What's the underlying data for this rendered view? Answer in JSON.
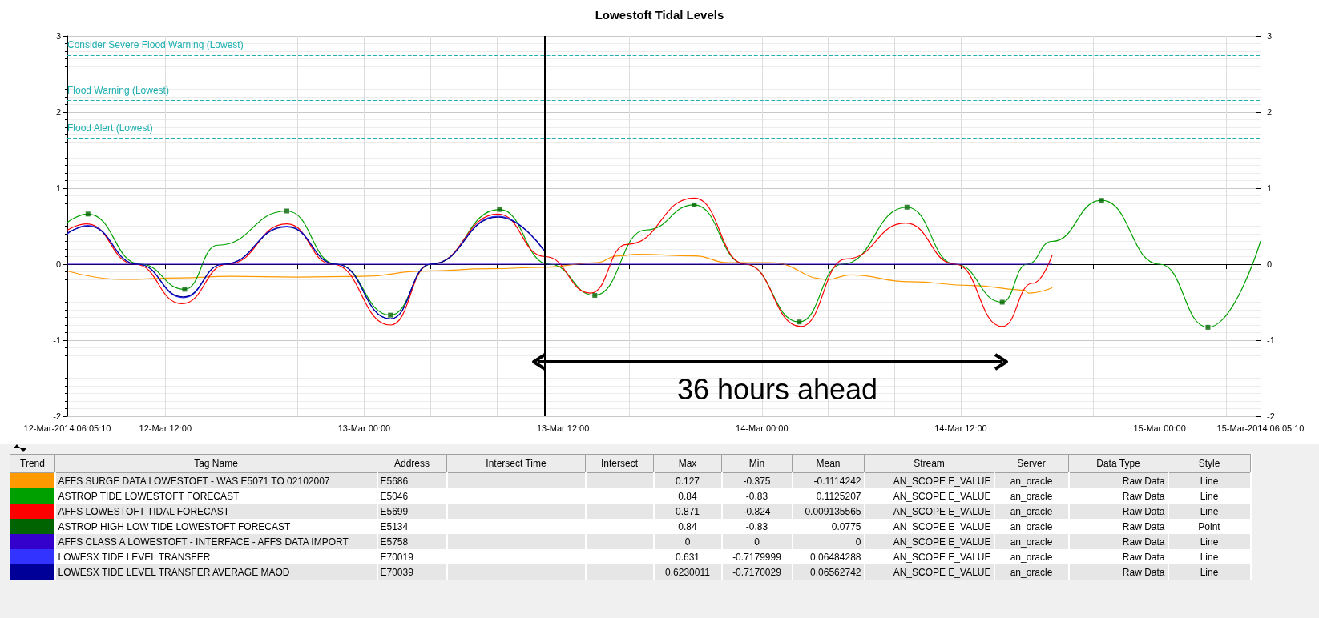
{
  "chart_data": [
    {
      "type": "line",
      "title": "Lowestoft Tidal Levels",
      "marker": "none",
      "line_style": "solid",
      "grid": true,
      "xlim": [
        "2014-03-12T06:05:10",
        "2014-03-15T06:05:10"
      ],
      "xticks": [
        {
          "value": "2014-03-12T06:05:10",
          "label": "12-Mar-2014 06:05:10"
        },
        {
          "value": "2014-03-12T08:00",
          "label": null
        },
        {
          "value": "2014-03-12T12:00",
          "label": "12-Mar 12:00"
        },
        {
          "value": "2014-03-12T16:00",
          "label": null
        },
        {
          "value": "2014-03-12T20:00",
          "label": null
        },
        {
          "value": "2014-03-13T00:00",
          "label": "13-Mar 00:00"
        },
        {
          "value": "2014-03-13T04:00",
          "label": null
        },
        {
          "value": "2014-03-13T08:00",
          "label": null
        },
        {
          "value": "2014-03-13T12:00",
          "label": "13-Mar 12:00"
        },
        {
          "value": "2014-03-13T16:00",
          "label": null
        },
        {
          "value": "2014-03-13T20:00",
          "label": null
        },
        {
          "value": "2014-03-14T00:00",
          "label": "14-Mar 00:00"
        },
        {
          "value": "2014-03-14T04:00",
          "label": null
        },
        {
          "value": "2014-03-14T08:00",
          "label": null
        },
        {
          "value": "2014-03-14T12:00",
          "label": "14-Mar 12:00"
        },
        {
          "value": "2014-03-14T16:00",
          "label": null
        },
        {
          "value": "2014-03-14T20:00",
          "label": null
        },
        {
          "value": "2014-03-15T00:00",
          "label": "15-Mar 00:00"
        },
        {
          "value": "2014-03-15T04:00",
          "label": null
        },
        {
          "value": "2014-03-15T06:05:10",
          "label": "15-Mar-2014 06:05:10"
        }
      ],
      "ylim": [
        -2,
        3
      ],
      "yticks": [
        -2,
        -1,
        0,
        1,
        2,
        3
      ],
      "y2lim": [
        -2,
        3
      ],
      "y2ticks": [
        -2,
        -1,
        0,
        1,
        2,
        3
      ],
      "ref_lines": [
        {
          "axis": "y",
          "value": 2.75,
          "label": "Consider Severe Flood Warning (Lowest)",
          "color": "#20b0b0",
          "line_style": "dashed"
        },
        {
          "axis": "y",
          "value": 2.15,
          "label": "Flood Warning (Lowest)",
          "color": "#20b0b0",
          "line_style": "dashed"
        },
        {
          "axis": "y",
          "value": 1.65,
          "label": "Flood Alert (Lowest)",
          "color": "#20b0b0",
          "line_style": "dashed"
        },
        {
          "axis": "x",
          "value": "2014-03-13T10:55",
          "color": "#000000",
          "line_style": "solid"
        }
      ],
      "annotations": [
        "36 hours ahead"
      ],
      "series": [
        {
          "color": "#ff9900",
          "x": [
            "2014-03-12T06:06",
            "2014-03-12T09:25",
            "2014-03-12T12:50",
            "2014-03-12T15:55",
            "2014-03-12T20:00",
            "2014-03-12T23:55",
            "2014-03-13T03:40",
            "2014-03-13T07:35",
            "2014-03-13T10:55",
            "2014-03-13T14:00",
            "2014-03-13T15:20",
            "2014-03-13T16:30",
            "2014-03-13T19:55",
            "2014-03-13T22:00",
            "2014-03-14T00:30",
            "2014-03-14T04:00",
            "2014-03-14T05:20",
            "2014-03-14T08:55",
            "2014-03-14T12:40",
            "2014-03-14T15:50",
            "2014-03-14T16:05",
            "2014-03-14T17:30"
          ],
          "values": [
            -0.09,
            -0.2,
            -0.18,
            -0.16,
            -0.17,
            -0.16,
            -0.09,
            -0.06,
            -0.04,
            0.02,
            0.11,
            0.13,
            0.11,
            0.02,
            0.02,
            -0.2,
            -0.14,
            -0.23,
            -0.28,
            -0.34,
            -0.38,
            -0.31
          ]
        },
        {
          "color": "#00a000",
          "x": [
            "2014-03-12T06:06",
            "2014-03-12T07:20",
            "2014-03-12T10:30",
            "2014-03-12T13:10",
            "2014-03-12T15:10",
            "2014-03-12T19:20",
            "2014-03-12T22:20",
            "2014-03-13T01:35",
            "2014-03-13T04:05",
            "2014-03-13T08:10",
            "2014-03-13T11:10",
            "2014-03-13T13:55",
            "2014-03-13T17:00",
            "2014-03-13T19:55",
            "2014-03-13T23:00",
            "2014-03-14T02:15",
            "2014-03-14T04:50",
            "2014-03-14T08:45",
            "2014-03-14T11:40",
            "2014-03-14T14:30",
            "2014-03-14T16:00",
            "2014-03-14T17:30",
            "2014-03-14T20:30",
            "2014-03-15T00:00",
            "2014-03-15T02:55",
            "2014-03-15T06:05"
          ],
          "values": [
            0.55,
            0.66,
            0.0,
            -0.33,
            0.25,
            0.7,
            0.0,
            -0.67,
            0.0,
            0.72,
            0.0,
            -0.41,
            0.45,
            0.78,
            0.0,
            -0.76,
            0.0,
            0.75,
            0.0,
            -0.5,
            0.0,
            0.3,
            0.84,
            0.0,
            -0.83,
            0.3
          ]
        },
        {
          "color": "#ff0000",
          "x": [
            "2014-03-12T06:06",
            "2014-03-12T07:15",
            "2014-03-12T10:10",
            "2014-03-12T13:00",
            "2014-03-12T15:45",
            "2014-03-12T19:20",
            "2014-03-12T22:05",
            "2014-03-13T01:35",
            "2014-03-13T04:00",
            "2014-03-13T08:05",
            "2014-03-13T10:55",
            "2014-03-13T13:40",
            "2014-03-13T15:50",
            "2014-03-13T19:55",
            "2014-03-13T23:00",
            "2014-03-14T02:20",
            "2014-03-14T05:05",
            "2014-03-14T08:40",
            "2014-03-14T11:40",
            "2014-03-14T14:30",
            "2014-03-14T16:20",
            "2014-03-14T17:30"
          ],
          "values": [
            0.45,
            0.53,
            0.0,
            -0.52,
            0.0,
            0.53,
            0.0,
            -0.8,
            0.0,
            0.66,
            0.1,
            -0.38,
            0.26,
            0.87,
            0.0,
            -0.82,
            0.07,
            0.54,
            0.0,
            -0.82,
            -0.25,
            0.11
          ]
        },
        {
          "type": "scatter",
          "marker": "square",
          "color": "#006400",
          "x": [
            "2014-03-12T07:20",
            "2014-03-12T13:10",
            "2014-03-12T19:20",
            "2014-03-13T01:35",
            "2014-03-13T08:10",
            "2014-03-13T13:55",
            "2014-03-13T19:55",
            "2014-03-14T02:15",
            "2014-03-14T08:45",
            "2014-03-14T14:30",
            "2014-03-14T20:30",
            "2014-03-15T02:55"
          ],
          "values": [
            0.66,
            -0.33,
            0.7,
            -0.67,
            0.72,
            -0.41,
            0.78,
            -0.76,
            0.75,
            -0.5,
            0.84,
            -0.83
          ]
        },
        {
          "color": "#3300cc",
          "x": [
            "2014-03-12T06:06",
            "2014-03-14T17:30"
          ],
          "values": [
            0,
            0
          ]
        },
        {
          "color": "#3333ff",
          "x": [
            "2014-03-12T06:06",
            "2014-03-12T07:20",
            "2014-03-12T10:20",
            "2014-03-12T13:05",
            "2014-03-12T15:30",
            "2014-03-12T19:20",
            "2014-03-12T22:20",
            "2014-03-13T01:35",
            "2014-03-13T04:00",
            "2014-03-13T08:05",
            "2014-03-13T10:50"
          ],
          "values": [
            0.4,
            0.51,
            0.0,
            -0.44,
            0.0,
            0.5,
            0.0,
            -0.72,
            0.0,
            0.63,
            0.18
          ]
        },
        {
          "color": "#000099",
          "x": [
            "2014-03-12T06:06",
            "2014-03-12T07:20",
            "2014-03-12T10:20",
            "2014-03-12T13:05",
            "2014-03-12T15:30",
            "2014-03-12T19:20",
            "2014-03-12T22:20",
            "2014-03-13T01:35",
            "2014-03-13T04:00",
            "2014-03-13T08:05",
            "2014-03-13T10:50"
          ],
          "values": [
            0.41,
            0.5,
            0.0,
            -0.43,
            0.0,
            0.49,
            0.0,
            -0.72,
            0.0,
            0.62,
            0.19
          ]
        }
      ]
    },
    {
      "type": "other",
      "categories": [
        "Trend",
        "Tag Name",
        "Address",
        "Intersect Time",
        "Intersect",
        "Max",
        "Min",
        "Mean",
        "Stream",
        "Server",
        "Data Type",
        "Style"
      ],
      "cell_labels": [
        [
          null,
          "AFFS SURGE DATA LOWESTOFT - WAS E5071 TO 02102007",
          "E5686",
          null,
          null,
          "0.127",
          "-0.375",
          "-0.1114242",
          "AN_SCOPE E_VALUE",
          "an_oracle",
          "Raw Data",
          "Line"
        ],
        [
          null,
          "ASTROP TIDE LOWESTOFT FORECAST",
          "E5046",
          null,
          null,
          "0.84",
          "-0.83",
          "0.1125207",
          "AN_SCOPE E_VALUE",
          "an_oracle",
          "Raw Data",
          "Line"
        ],
        [
          null,
          "AFFS LOWESTOFT TIDAL FORECAST",
          "E5699",
          null,
          null,
          "0.871",
          "-0.824",
          "0.009135565",
          "AN_SCOPE E_VALUE",
          "an_oracle",
          "Raw Data",
          "Line"
        ],
        [
          null,
          "ASTROP HIGH LOW TIDE LOWESTOFT FORECAST",
          "E5134",
          null,
          null,
          "0.84",
          "-0.83",
          "0.0775",
          "AN_SCOPE E_VALUE",
          "an_oracle",
          "Raw Data",
          "Point"
        ],
        [
          null,
          "AFFS CLASS A LOWESTOFT  - INTERFACE - AFFS DATA IMPORT",
          "E5758",
          null,
          null,
          "0",
          "0",
          "0",
          "AN_SCOPE E_VALUE",
          "an_oracle",
          "Raw Data",
          "Line"
        ],
        [
          null,
          "LOWESX TIDE LEVEL TRANSFER",
          "E70019",
          null,
          null,
          "0.631",
          "-0.7179999",
          "0.06484288",
          "AN_SCOPE E_VALUE",
          "an_oracle",
          "Raw Data",
          "Line"
        ],
        [
          null,
          "LOWESX TIDE LEVEL TRANSFER AVERAGE MAOD",
          "E70039",
          null,
          null,
          "0.6230011",
          "-0.7170029",
          "0.06562742",
          "AN_SCOPE E_VALUE",
          "an_oracle",
          "Raw Data",
          "Line"
        ]
      ]
    }
  ]
}
